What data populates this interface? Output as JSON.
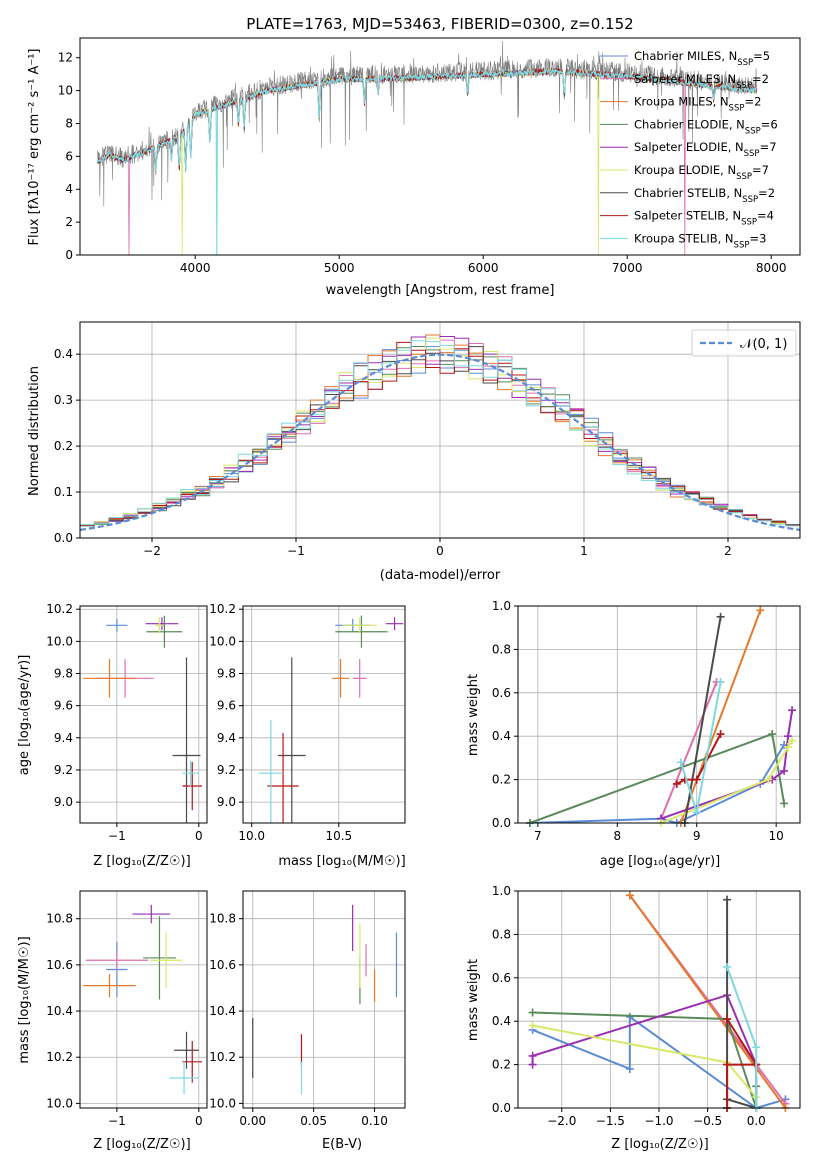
{
  "title": "PLATE=1763, MJD=53463, FIBERID=0300, z=0.152",
  "colors": {
    "chab_miles": "#5b8bd6",
    "salp_miles": "#df6fae",
    "krou_miles": "#e37a2b",
    "chab_elodie": "#5a8a5a",
    "salp_elodie": "#9a2fb0",
    "krou_elodie": "#d8e86a",
    "chab_stelib": "#4a4a4a",
    "salp_stelib": "#b51818",
    "krou_stelib": "#7fd8e0",
    "data": "#7f7f7f",
    "gauss": "#5b8bd6",
    "grid": "#b0b0b0"
  },
  "panels": {
    "spectrum": {
      "xlabel": "wavelength [Angstrom, rest frame]",
      "ylabel": "Flux [fλ10⁻¹⁷ erg cm⁻² s⁻¹ A⁻¹]",
      "xticks": [
        "4000",
        "5000",
        "6000",
        "7000",
        "8000"
      ],
      "yticks": [
        "0",
        "2",
        "4",
        "6",
        "8",
        "10",
        "12"
      ]
    },
    "residuals": {
      "xlabel": "(data-model)/error",
      "ylabel": "Normed distribution",
      "xticks": [
        "−2",
        "−1",
        "0",
        "1",
        "2"
      ],
      "yticks": [
        "0.0",
        "0.1",
        "0.2",
        "0.3",
        "0.4"
      ],
      "legend": "𝒩(0, 1)"
    },
    "age_z": {
      "xlabel": "Z [log₁₀(Z/Z☉)]",
      "ylabel": "age  [log₁₀(age/yr)]",
      "xticks": [
        "−1",
        "0"
      ],
      "yticks": [
        "9.0",
        "9.2",
        "9.4",
        "9.6",
        "9.8",
        "10.0",
        "10.2"
      ]
    },
    "age_mass": {
      "xlabel": "mass [log₁₀(M/M☉)]",
      "xticks": [
        "10.0",
        "10.5"
      ],
      "yticks": [
        "9.0",
        "9.2",
        "9.4",
        "9.6",
        "9.8",
        "10.0",
        "10.2"
      ]
    },
    "mw_age": {
      "xlabel": "age  [log₁₀(age/yr)]",
      "ylabel": "mass weight",
      "xticks": [
        "7",
        "8",
        "9",
        "10"
      ],
      "yticks": [
        "0.0",
        "0.2",
        "0.4",
        "0.6",
        "0.8",
        "1.0"
      ]
    },
    "mass_z": {
      "xlabel": "Z [log₁₀(Z/Z☉)]",
      "ylabel": "mass [log₁₀(M/M☉)]",
      "xticks": [
        "−1",
        "0"
      ],
      "yticks": [
        "10.0",
        "10.2",
        "10.4",
        "10.6",
        "10.8"
      ]
    },
    "mass_ebv": {
      "xlabel": "E(B-V)",
      "xticks": [
        "0.00",
        "0.05",
        "0.10"
      ],
      "yticks": [
        "10.0",
        "10.2",
        "10.4",
        "10.6",
        "10.8"
      ]
    },
    "mw_z": {
      "xlabel": "Z [log₁₀(Z/Z☉)]",
      "ylabel": "mass weight",
      "xticks": [
        "−2.0",
        "−1.5",
        "−1.0",
        "−0.5",
        "0.0"
      ],
      "yticks": [
        "0.0",
        "0.2",
        "0.4",
        "0.6",
        "0.8",
        "1.0"
      ]
    }
  },
  "chart_data": [
    {
      "type": "line",
      "title": "PLATE=1763, MJD=53463, FIBERID=0300, z=0.152",
      "xlabel": "wavelength [Angstrom, rest frame]",
      "ylabel": "Flux [fλ10⁻¹⁷ erg cm⁻² s⁻¹ A⁻¹]",
      "xlim": [
        3200,
        8200
      ],
      "ylim": [
        0,
        13.2
      ],
      "legend_position": "right",
      "grid": false,
      "series": [
        {
          "name": "Chabrier MILES, N_SSP=5",
          "color_key": "chab_miles"
        },
        {
          "name": "Salpeter MILES, N_SSP=2",
          "color_key": "salp_miles"
        },
        {
          "name": "Kroupa MILES, N_SSP=2",
          "color_key": "krou_miles"
        },
        {
          "name": "Chabrier ELODIE, N_SSP=6",
          "color_key": "chab_elodie"
        },
        {
          "name": "Salpeter ELODIE, N_SSP=7",
          "color_key": "salp_elodie"
        },
        {
          "name": "Kroupa ELODIE, N_SSP=7",
          "color_key": "krou_elodie"
        },
        {
          "name": "Chabrier STELIB, N_SSP=2",
          "color_key": "chab_stelib"
        },
        {
          "name": "Salpeter STELIB, N_SSP=4",
          "color_key": "salp_stelib"
        },
        {
          "name": "Kroupa STELIB, N_SSP=3",
          "color_key": "krou_stelib"
        }
      ],
      "continuum": {
        "x": [
          3320,
          3400,
          3500,
          3700,
          3900,
          4000,
          4200,
          4500,
          5000,
          5500,
          6000,
          6500,
          7000,
          7500,
          7900
        ],
        "y": [
          5.8,
          6.2,
          5.9,
          6.6,
          7.4,
          8.7,
          9.3,
          10.2,
          10.9,
          11.0,
          11.2,
          11.4,
          11.1,
          10.6,
          10.2
        ]
      },
      "model_drops": [
        {
          "color_key": "salp_miles",
          "x": 3540
        },
        {
          "color_key": "krou_elodie",
          "x": 3910
        },
        {
          "color_key": "krou_stelib",
          "x": 4150
        },
        {
          "color_key": "krou_elodie",
          "x": 6800
        },
        {
          "color_key": "salp_miles",
          "x": 7400
        }
      ]
    },
    {
      "type": "bar",
      "title": "",
      "xlabel": "(data-model)/error",
      "ylabel": "Normed distribution",
      "xlim": [
        -2.5,
        2.5
      ],
      "ylim": [
        0,
        0.47
      ],
      "grid": true,
      "bin_width": 0.1,
      "series": [
        {
          "name": "𝒩(0, 1)",
          "kind": "gaussian",
          "mu": 0,
          "sigma": 1
        }
      ]
    },
    {
      "type": "scatter",
      "title": "",
      "xlabel": "Z [log₁₀(Z/Z☉)]",
      "ylabel": "age  [log₁₀(age/yr)]",
      "xlim": [
        -1.45,
        0.1
      ],
      "ylim": [
        8.87,
        10.22
      ],
      "grid": true,
      "points": [
        {
          "color_key": "chab_miles",
          "x": -1.0,
          "y": 10.1,
          "xerr": 0.13,
          "yerr": 0.04
        },
        {
          "color_key": "salp_miles",
          "x": -0.9,
          "y": 9.77,
          "xerr": 0.35,
          "yerr": 0.12
        },
        {
          "color_key": "krou_miles",
          "x": -1.09,
          "y": 9.77,
          "xerr": 0.32,
          "yerr": 0.12
        },
        {
          "color_key": "chab_elodie",
          "x": -0.42,
          "y": 10.06,
          "xerr": 0.22,
          "yerr": 0.1
        },
        {
          "color_key": "salp_elodie",
          "x": -0.45,
          "y": 10.11,
          "xerr": 0.2,
          "yerr": 0.04
        },
        {
          "color_key": "krou_elodie",
          "x": -0.48,
          "y": 10.1,
          "xerr": 0.05,
          "yerr": 0.05
        },
        {
          "color_key": "chab_stelib",
          "x": -0.15,
          "y": 9.29,
          "xerr": 0.17,
          "yerr": 0.61
        },
        {
          "color_key": "salp_stelib",
          "x": -0.08,
          "y": 9.1,
          "xerr": 0.12,
          "yerr": 0.15
        },
        {
          "color_key": "krou_stelib",
          "x": -0.1,
          "y": 9.18,
          "xerr": 0.1,
          "yerr": 0.08
        }
      ]
    },
    {
      "type": "scatter",
      "title": "",
      "xlabel": "mass [log₁₀(M/M☉)]",
      "ylabel": "",
      "xlim": [
        9.95,
        10.88
      ],
      "ylim": [
        8.87,
        10.22
      ],
      "grid": true,
      "points": [
        {
          "color_key": "chab_miles",
          "x": 10.58,
          "y": 10.1,
          "xerr": 0.1,
          "yerr": 0.04
        },
        {
          "color_key": "salp_miles",
          "x": 10.62,
          "y": 9.77,
          "xerr": 0.04,
          "yerr": 0.12
        },
        {
          "color_key": "krou_miles",
          "x": 10.51,
          "y": 9.77,
          "xerr": 0.05,
          "yerr": 0.12
        },
        {
          "color_key": "chab_elodie",
          "x": 10.63,
          "y": 10.06,
          "xerr": 0.15,
          "yerr": 0.1
        },
        {
          "color_key": "salp_elodie",
          "x": 10.82,
          "y": 10.11,
          "xerr": 0.05,
          "yerr": 0.04
        },
        {
          "color_key": "krou_elodie",
          "x": 10.62,
          "y": 10.1,
          "xerr": 0.1,
          "yerr": 0.05
        },
        {
          "color_key": "chab_stelib",
          "x": 10.23,
          "y": 9.29,
          "xerr": 0.08,
          "yerr": 0.61
        },
        {
          "color_key": "salp_stelib",
          "x": 10.18,
          "y": 9.1,
          "xerr": 0.09,
          "yerr": 0.33
        },
        {
          "color_key": "krou_stelib",
          "x": 10.11,
          "y": 9.18,
          "xerr": 0.07,
          "yerr": 0.33
        }
      ]
    },
    {
      "type": "line",
      "title": "",
      "xlabel": "age  [log₁₀(age/yr)]",
      "ylabel": "mass weight",
      "xlim": [
        6.75,
        10.3
      ],
      "ylim": [
        0,
        1.0
      ],
      "grid": true,
      "series": [
        {
          "color_key": "chab_miles",
          "x": [
            6.9,
            8.55,
            8.75,
            9.8,
            10.1
          ],
          "y": [
            0.0,
            0.02,
            0.0,
            0.18,
            0.36
          ]
        },
        {
          "color_key": "salp_miles",
          "x": [
            8.55,
            9.25
          ],
          "y": [
            0.02,
            0.65
          ]
        },
        {
          "color_key": "krou_miles",
          "x": [
            8.8,
            9.8
          ],
          "y": [
            0.0,
            0.98
          ]
        },
        {
          "color_key": "chab_elodie",
          "x": [
            6.9,
            9.95,
            10.1
          ],
          "y": [
            0.0,
            0.41,
            0.09
          ]
        },
        {
          "color_key": "salp_elodie",
          "x": [
            8.55,
            9.95,
            10.1,
            10.15,
            10.2
          ],
          "y": [
            0.02,
            0.2,
            0.24,
            0.4,
            0.52
          ]
        },
        {
          "color_key": "krou_elodie",
          "x": [
            8.55,
            9.9,
            10.15,
            10.2
          ],
          "y": [
            0.0,
            0.2,
            0.35,
            0.38
          ]
        },
        {
          "color_key": "chab_stelib",
          "x": [
            8.85,
            9.3
          ],
          "y": [
            0.0,
            0.95
          ]
        },
        {
          "color_key": "salp_stelib",
          "x": [
            8.75,
            8.85,
            9.0,
            9.3
          ],
          "y": [
            0.18,
            0.2,
            0.2,
            0.41
          ]
        },
        {
          "color_key": "krou_stelib",
          "x": [
            8.8,
            9.0,
            9.3
          ],
          "y": [
            0.28,
            0.05,
            0.65
          ]
        }
      ]
    },
    {
      "type": "scatter",
      "title": "",
      "xlabel": "Z [log₁₀(Z/Z☉)]",
      "ylabel": "mass [log₁₀(M/M☉)]",
      "xlim": [
        -1.45,
        0.1
      ],
      "ylim": [
        9.98,
        10.92
      ],
      "grid": true,
      "points": [
        {
          "color_key": "chab_miles",
          "x": -1.0,
          "y": 10.58,
          "xerr": 0.13,
          "yerr": 0.12
        },
        {
          "color_key": "salp_miles",
          "x": -1.0,
          "y": 10.62,
          "xerr": 0.38,
          "yerr": 0.04
        },
        {
          "color_key": "krou_miles",
          "x": -1.09,
          "y": 10.51,
          "xerr": 0.32,
          "yerr": 0.05
        },
        {
          "color_key": "chab_elodie",
          "x": -0.48,
          "y": 10.63,
          "xerr": 0.2,
          "yerr": 0.18
        },
        {
          "color_key": "salp_elodie",
          "x": -0.58,
          "y": 10.82,
          "xerr": 0.23,
          "yerr": 0.04
        },
        {
          "color_key": "krou_elodie",
          "x": -0.4,
          "y": 10.62,
          "xerr": 0.2,
          "yerr": 0.12
        },
        {
          "color_key": "chab_stelib",
          "x": -0.15,
          "y": 10.23,
          "xerr": 0.15,
          "yerr": 0.08
        },
        {
          "color_key": "salp_stelib",
          "x": -0.08,
          "y": 10.18,
          "xerr": 0.12,
          "yerr": 0.09
        },
        {
          "color_key": "krou_stelib",
          "x": -0.18,
          "y": 10.11,
          "xerr": 0.18,
          "yerr": 0.07
        }
      ]
    },
    {
      "type": "scatter",
      "title": "",
      "xlabel": "E(B-V)",
      "ylabel": "",
      "xlim": [
        -0.008,
        0.125
      ],
      "ylim": [
        9.98,
        10.92
      ],
      "grid": true,
      "points": [
        {
          "color_key": "chab_miles",
          "x": 0.118,
          "y": 10.6,
          "yerr": 0.14
        },
        {
          "color_key": "salp_miles",
          "x": 0.093,
          "y": 10.62,
          "yerr": 0.07
        },
        {
          "color_key": "krou_miles",
          "x": 0.1,
          "y": 10.51,
          "yerr": 0.07
        },
        {
          "color_key": "chab_elodie",
          "x": 0.088,
          "y": 10.53,
          "yerr": 0.1
        },
        {
          "color_key": "salp_elodie",
          "x": 0.082,
          "y": 10.76,
          "yerr": 0.1
        },
        {
          "color_key": "krou_elodie",
          "x": 0.088,
          "y": 10.64,
          "yerr": 0.14
        },
        {
          "color_key": "chab_stelib",
          "x": 0.0,
          "y": 10.24,
          "yerr": 0.13
        },
        {
          "color_key": "salp_stelib",
          "x": 0.04,
          "y": 10.23,
          "yerr": 0.07
        },
        {
          "color_key": "krou_stelib",
          "x": 0.04,
          "y": 10.11,
          "yerr": 0.07
        }
      ]
    },
    {
      "type": "line",
      "title": "",
      "xlabel": "Z [log₁₀(Z/Z☉)]",
      "ylabel": "mass weight",
      "xlim": [
        -2.45,
        0.45
      ],
      "ylim": [
        0,
        1.0
      ],
      "grid": true,
      "series": [
        {
          "color_key": "chab_miles",
          "x": [
            -2.3,
            -1.3,
            -1.3,
            0.0,
            0.3
          ],
          "y": [
            0.36,
            0.18,
            0.42,
            0.0,
            0.04
          ]
        },
        {
          "color_key": "salp_miles",
          "x": [
            -1.3,
            0.3
          ],
          "y": [
            0.98,
            0.02
          ]
        },
        {
          "color_key": "krou_miles",
          "x": [
            -1.3,
            0.3
          ],
          "y": [
            0.98,
            0.0
          ]
        },
        {
          "color_key": "chab_elodie",
          "x": [
            -2.3,
            -0.3,
            0.0,
            0.0
          ],
          "y": [
            0.44,
            0.41,
            0.0,
            0.1
          ]
        },
        {
          "color_key": "salp_elodie",
          "x": [
            -2.3,
            -2.3,
            -0.3,
            0.0,
            0.0
          ],
          "y": [
            0.2,
            0.24,
            0.52,
            0.2,
            0.0
          ]
        },
        {
          "color_key": "krou_elodie",
          "x": [
            -2.3,
            -0.3,
            0.0,
            0.0
          ],
          "y": [
            0.38,
            0.21,
            0.05,
            0.0
          ]
        },
        {
          "color_key": "chab_stelib",
          "x": [
            -0.3,
            -0.3,
            -0.3,
            0.0
          ],
          "y": [
            0.96,
            0.0,
            0.04,
            0.0
          ]
        },
        {
          "color_key": "salp_stelib",
          "x": [
            -0.3,
            0.0,
            -0.3,
            -0.3
          ],
          "y": [
            0.41,
            0.2,
            0.2,
            0.0
          ]
        },
        {
          "color_key": "krou_stelib",
          "x": [
            -0.3,
            0.0,
            0.0
          ],
          "y": [
            0.65,
            0.28,
            0.0
          ]
        }
      ]
    }
  ]
}
